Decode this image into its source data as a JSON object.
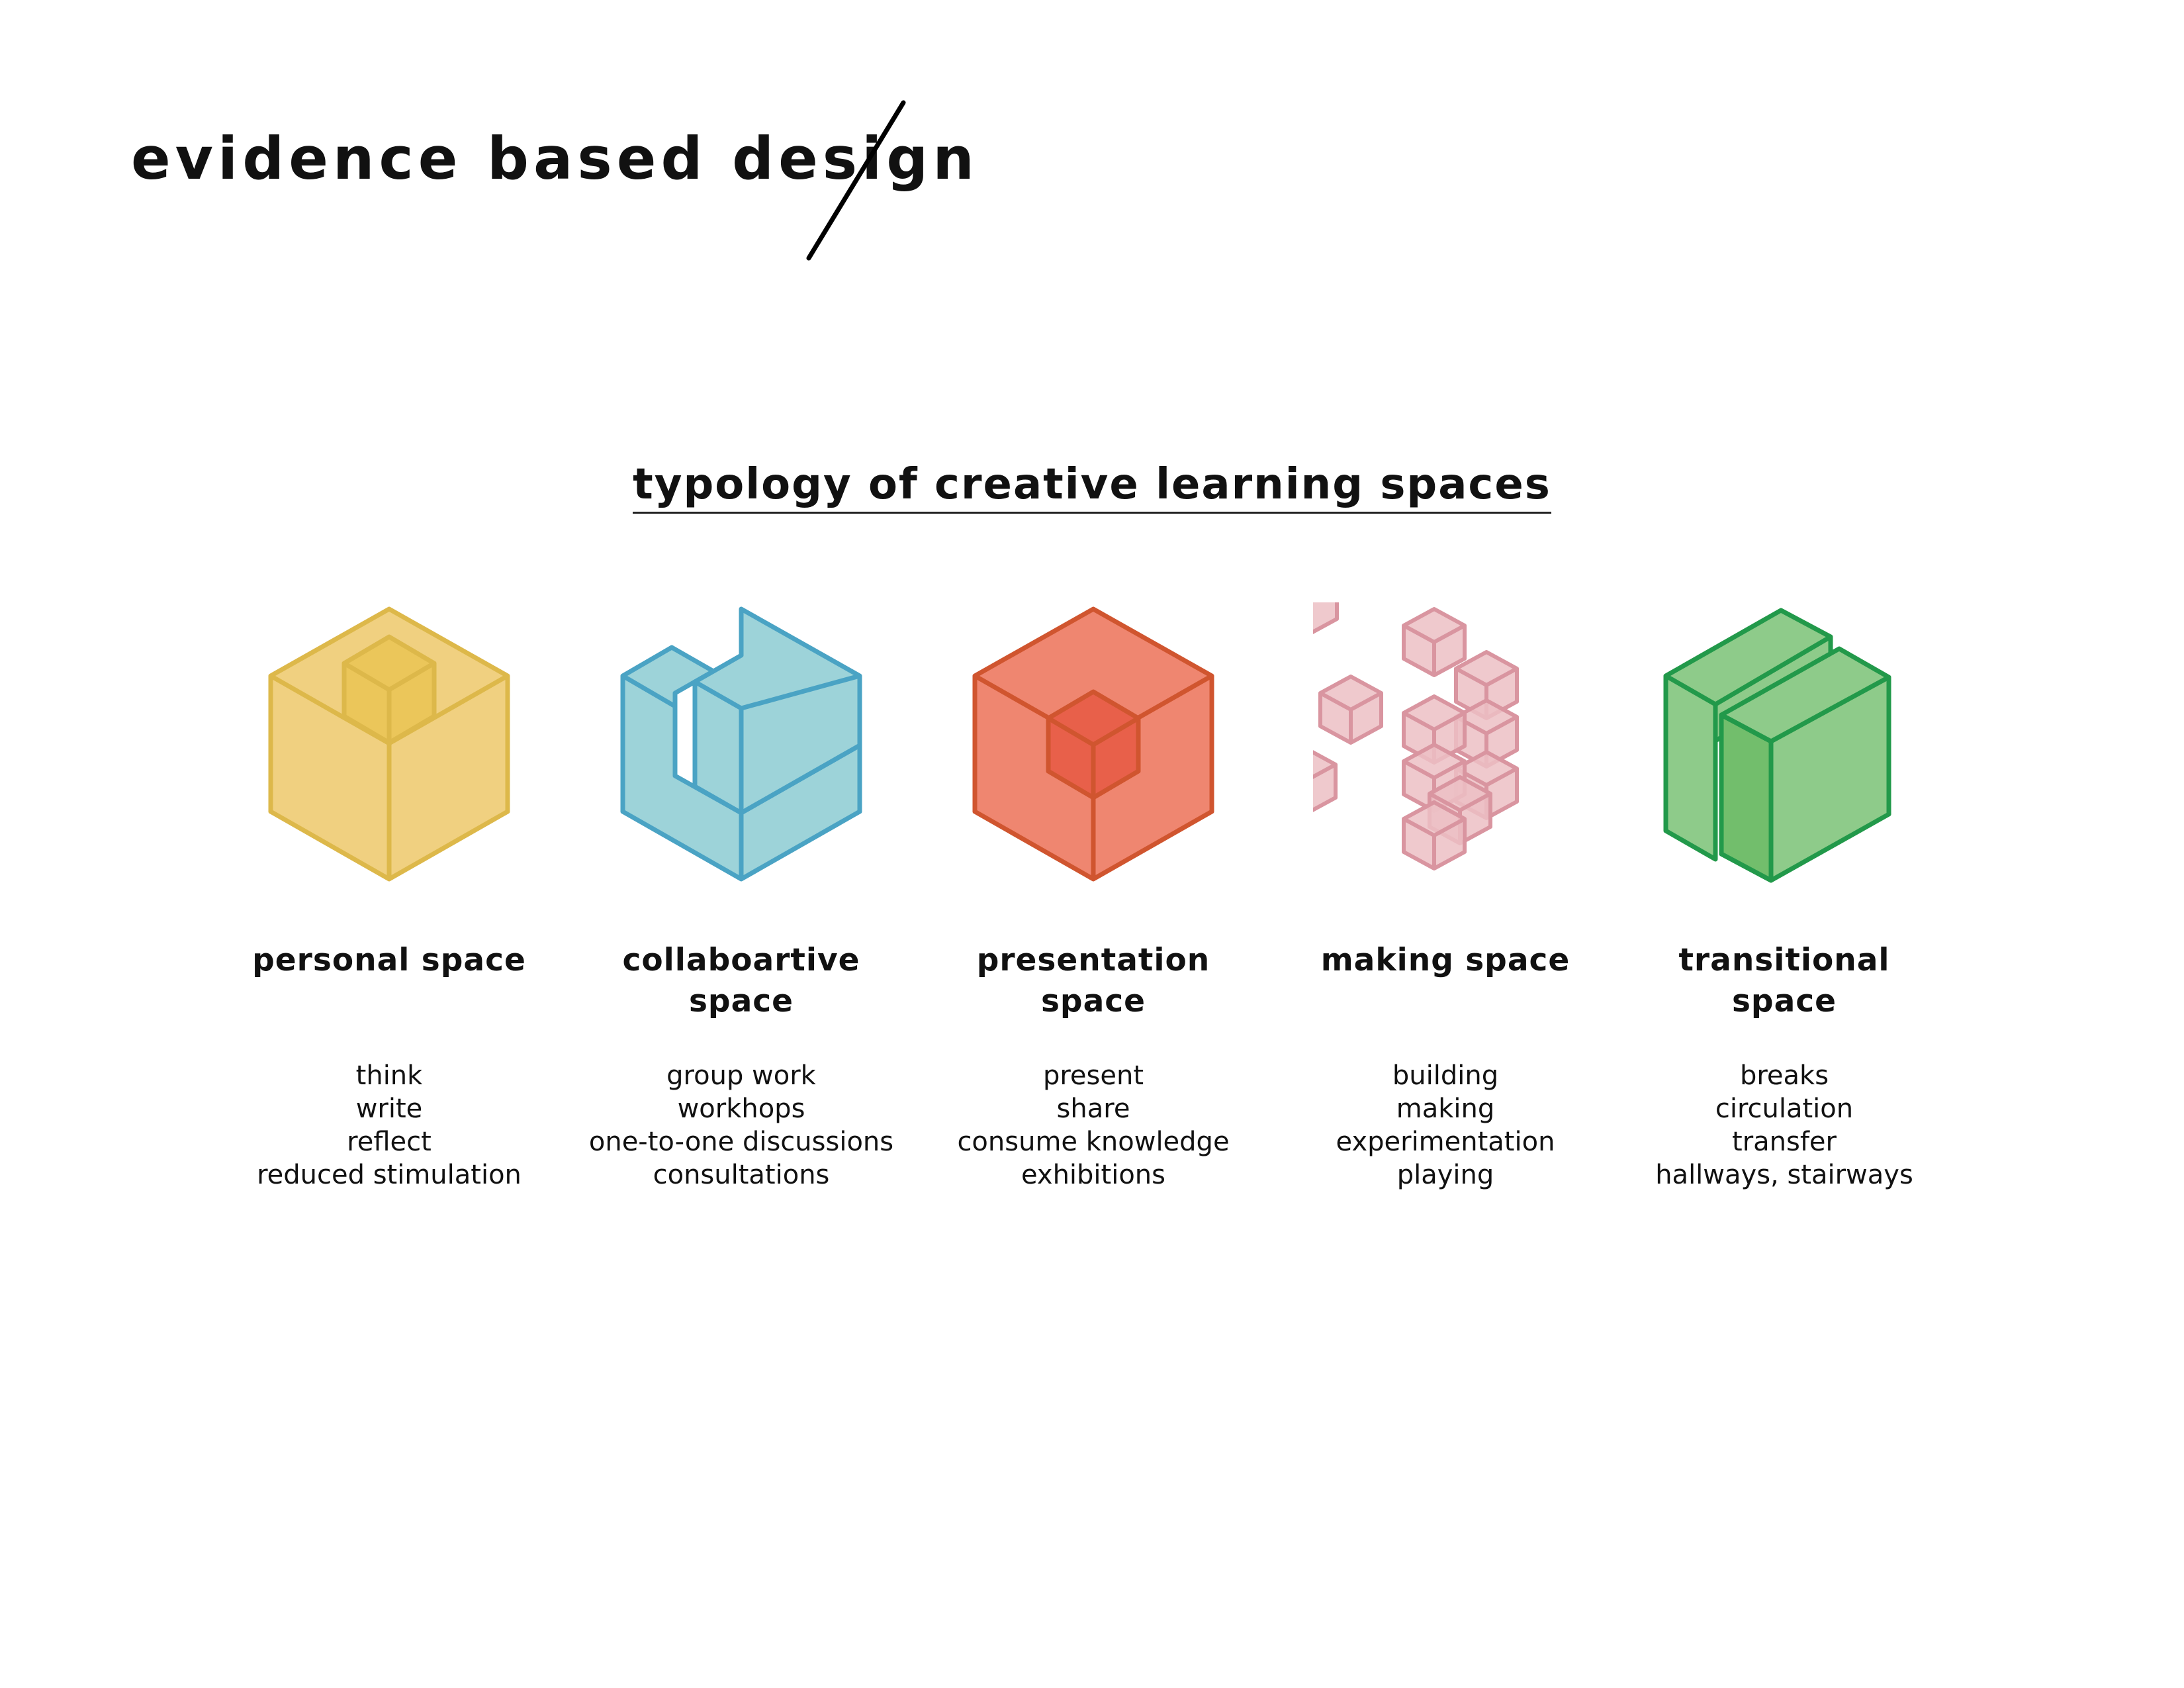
{
  "header": {
    "title": "evidence based design"
  },
  "section": {
    "title": "typology of creative learning spaces"
  },
  "colors": {
    "personal_fill": "#F0D080",
    "personal_stroke": "#DDB84A",
    "collab_fill": "#9DD3D9",
    "collab_stroke": "#4AA3C4",
    "presentation_fill": "#EF8670",
    "presentation_stroke": "#D0552F",
    "making_fill": "#ECC0C4",
    "making_stroke": "#D995A0",
    "transitional_fill": "#8ECB8A",
    "transitional_stroke": "#22994A"
  },
  "spaces": [
    {
      "icon": "nested-cube-icon",
      "label_lines": [
        "personal space"
      ],
      "activities": [
        "think",
        "write",
        "reflect",
        "reduced stimulation"
      ]
    },
    {
      "icon": "interlocking-cube-icon",
      "label_lines": [
        "collaboartive",
        "space"
      ],
      "activities": [
        "group work",
        "workhops",
        "one-to-one discussions",
        "consultations"
      ]
    },
    {
      "icon": "core-cube-icon",
      "label_lines": [
        "presentation",
        "space"
      ],
      "activities": [
        "present",
        "share",
        "consume knowledge",
        "exhibitions"
      ]
    },
    {
      "icon": "scattered-cubes-icon",
      "label_lines": [
        "making space"
      ],
      "activities": [
        "building",
        "making",
        "experimentation",
        "playing"
      ]
    },
    {
      "icon": "parallel-slabs-icon",
      "label_lines": [
        "transitional",
        "space"
      ],
      "activities": [
        "breaks",
        "circulation",
        "transfer",
        "hallways, stairways"
      ]
    }
  ]
}
